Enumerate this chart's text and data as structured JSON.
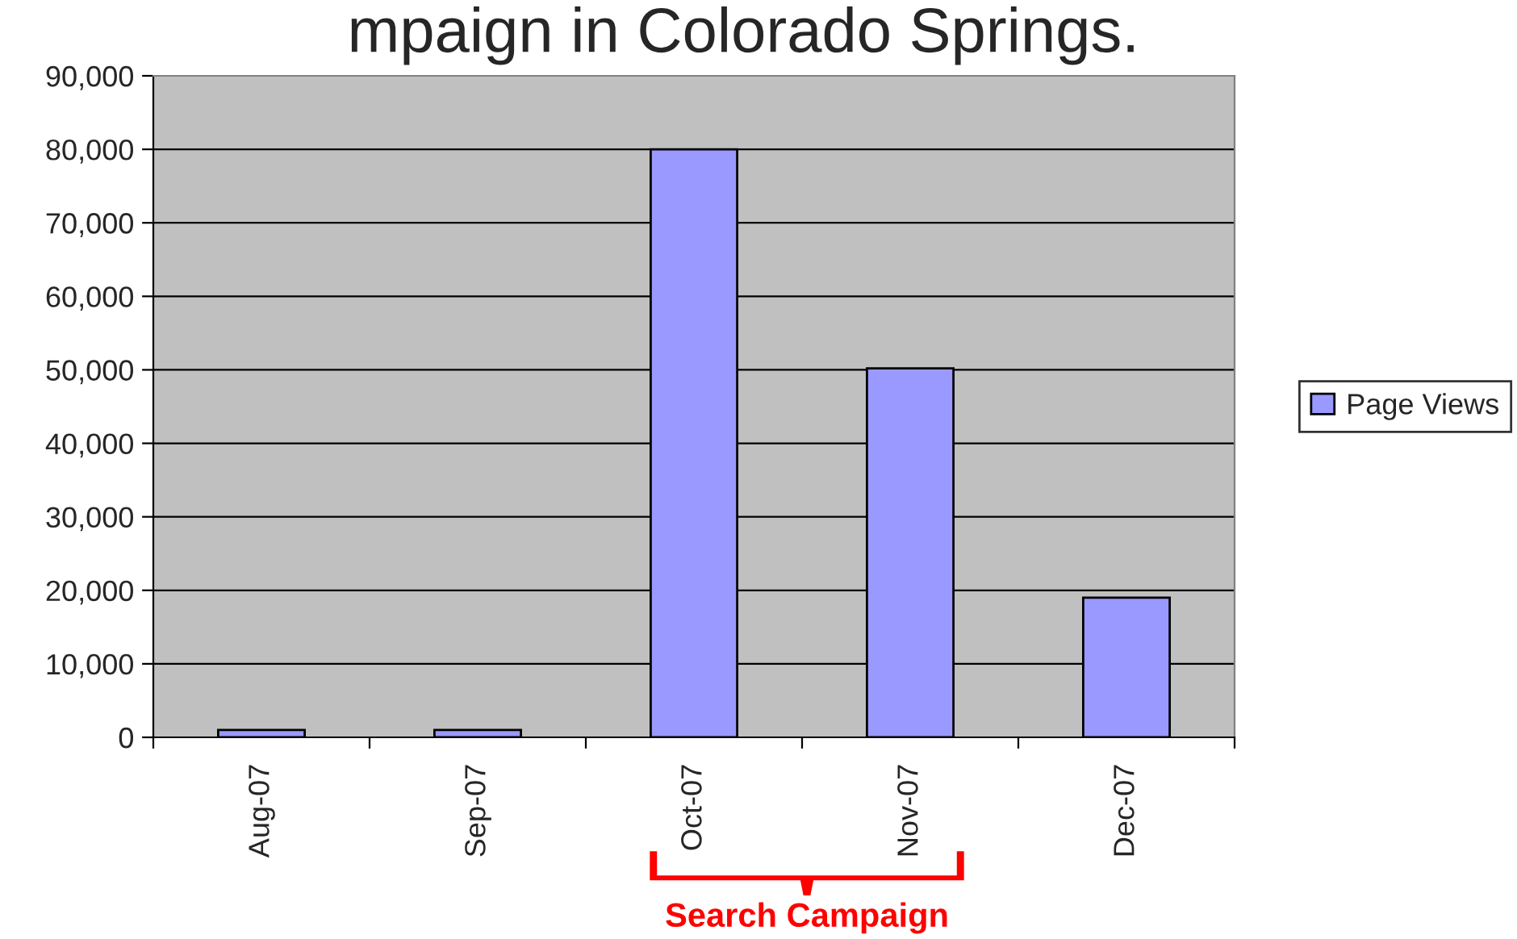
{
  "chart_data": {
    "type": "bar",
    "title": "mpaign in Colorado Springs.",
    "categories": [
      "Aug-07",
      "Sep-07",
      "Oct-07",
      "Nov-07",
      "Dec-07"
    ],
    "series": [
      {
        "name": "Page Views",
        "color": "#9999ff",
        "values": [
          1000,
          1000,
          80000,
          50200,
          19000
        ]
      }
    ],
    "ylim": [
      0,
      90000
    ],
    "yticks": [
      {
        "value": 0,
        "label": "0"
      },
      {
        "value": 10000,
        "label": "10,000"
      },
      {
        "value": 20000,
        "label": "20,000"
      },
      {
        "value": 30000,
        "label": "30,000"
      },
      {
        "value": 40000,
        "label": "40,000"
      },
      {
        "value": 50000,
        "label": "50,000"
      },
      {
        "value": 60000,
        "label": "60,000"
      },
      {
        "value": 70000,
        "label": "70,000"
      },
      {
        "value": 80000,
        "label": "80,000"
      },
      {
        "value": 90000,
        "label": "90,000"
      }
    ],
    "grid": "y",
    "legend": "right",
    "annotations": [
      "Search Campaign"
    ]
  }
}
